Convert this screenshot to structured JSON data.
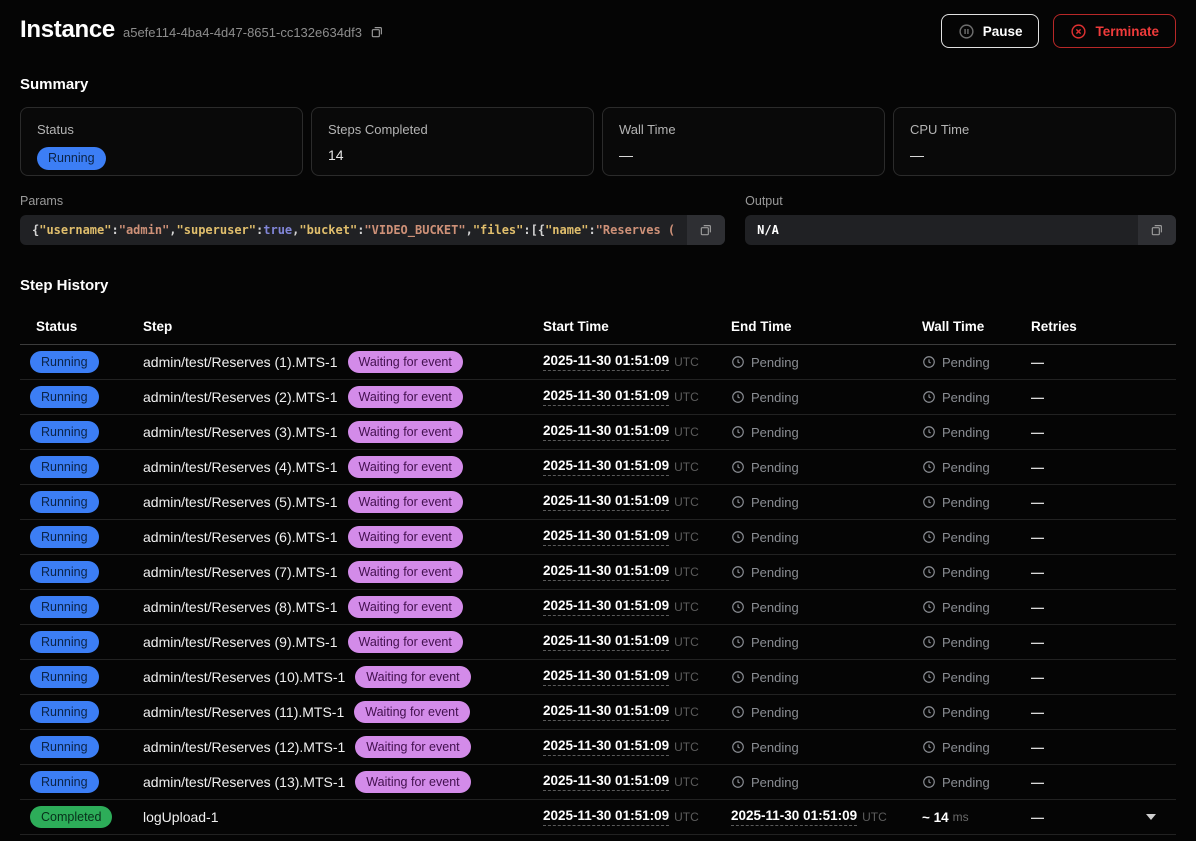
{
  "header": {
    "title": "Instance",
    "instance_id": "a5efe114-4ba4-4d47-8651-cc132e634df3",
    "pause_label": "Pause",
    "terminate_label": "Terminate"
  },
  "colors": {
    "status_running_bg": "#3c7ef5",
    "status_completed_bg": "#2dad59",
    "step_badge_bg": "#d38be9",
    "terminate_red": "#ef3b3b",
    "code_key": "#e0be6c",
    "code_string": "#ce9178",
    "code_bool": "#8186d8"
  },
  "summary": {
    "heading": "Summary",
    "cards": [
      {
        "label": "Status",
        "value": "Running",
        "kind": "badge"
      },
      {
        "label": "Steps Completed",
        "value": "14",
        "kind": "text"
      },
      {
        "label": "Wall Time",
        "value": "—",
        "kind": "text"
      },
      {
        "label": "CPU Time",
        "value": "—",
        "kind": "text"
      }
    ]
  },
  "params": {
    "label": "Params",
    "copy_icon": "copy-icon",
    "segments": [
      {
        "t": "{",
        "c": "punct"
      },
      {
        "t": "\"username\"",
        "c": "key"
      },
      {
        "t": ":",
        "c": "punct"
      },
      {
        "t": "\"admin\"",
        "c": "str"
      },
      {
        "t": ",",
        "c": "punct"
      },
      {
        "t": "\"superuser\"",
        "c": "key"
      },
      {
        "t": ":",
        "c": "punct"
      },
      {
        "t": "true",
        "c": "bool"
      },
      {
        "t": ",",
        "c": "punct"
      },
      {
        "t": "\"bucket\"",
        "c": "key"
      },
      {
        "t": ":",
        "c": "punct"
      },
      {
        "t": "\"VIDEO_BUCKET\"",
        "c": "str"
      },
      {
        "t": ",",
        "c": "punct"
      },
      {
        "t": "\"files\"",
        "c": "key"
      },
      {
        "t": ":[{",
        "c": "punct"
      },
      {
        "t": "\"name\"",
        "c": "key"
      },
      {
        "t": ":",
        "c": "punct"
      },
      {
        "t": "\"Reserves (",
        "c": "str"
      }
    ]
  },
  "output": {
    "label": "Output",
    "value": "N/A",
    "copy_icon": "copy-icon"
  },
  "step_history": {
    "heading": "Step History",
    "columns": [
      "Status",
      "Step",
      "Start Time",
      "End Time",
      "Wall Time",
      "Retries"
    ],
    "pending_label": "Pending",
    "rows": [
      {
        "status": "Running",
        "status_style": "blue",
        "step": "admin/test/Reserves (1).MTS-1",
        "step_badge": "Waiting for event",
        "start": {
          "time": "2025-11-30 01:51:09",
          "tz": "UTC"
        },
        "end": {
          "pending": "Pending"
        },
        "wall": {
          "pending": "Pending"
        },
        "retries": "—",
        "expandable": false
      },
      {
        "status": "Running",
        "status_style": "blue",
        "step": "admin/test/Reserves (2).MTS-1",
        "step_badge": "Waiting for event",
        "start": {
          "time": "2025-11-30 01:51:09",
          "tz": "UTC"
        },
        "end": {
          "pending": "Pending"
        },
        "wall": {
          "pending": "Pending"
        },
        "retries": "—",
        "expandable": false
      },
      {
        "status": "Running",
        "status_style": "blue",
        "step": "admin/test/Reserves (3).MTS-1",
        "step_badge": "Waiting for event",
        "start": {
          "time": "2025-11-30 01:51:09",
          "tz": "UTC"
        },
        "end": {
          "pending": "Pending"
        },
        "wall": {
          "pending": "Pending"
        },
        "retries": "—",
        "expandable": false
      },
      {
        "status": "Running",
        "status_style": "blue",
        "step": "admin/test/Reserves (4).MTS-1",
        "step_badge": "Waiting for event",
        "start": {
          "time": "2025-11-30 01:51:09",
          "tz": "UTC"
        },
        "end": {
          "pending": "Pending"
        },
        "wall": {
          "pending": "Pending"
        },
        "retries": "—",
        "expandable": false
      },
      {
        "status": "Running",
        "status_style": "blue",
        "step": "admin/test/Reserves (5).MTS-1",
        "step_badge": "Waiting for event",
        "start": {
          "time": "2025-11-30 01:51:09",
          "tz": "UTC"
        },
        "end": {
          "pending": "Pending"
        },
        "wall": {
          "pending": "Pending"
        },
        "retries": "—",
        "expandable": false
      },
      {
        "status": "Running",
        "status_style": "blue",
        "step": "admin/test/Reserves (6).MTS-1",
        "step_badge": "Waiting for event",
        "start": {
          "time": "2025-11-30 01:51:09",
          "tz": "UTC"
        },
        "end": {
          "pending": "Pending"
        },
        "wall": {
          "pending": "Pending"
        },
        "retries": "—",
        "expandable": false
      },
      {
        "status": "Running",
        "status_style": "blue",
        "step": "admin/test/Reserves (7).MTS-1",
        "step_badge": "Waiting for event",
        "start": {
          "time": "2025-11-30 01:51:09",
          "tz": "UTC"
        },
        "end": {
          "pending": "Pending"
        },
        "wall": {
          "pending": "Pending"
        },
        "retries": "—",
        "expandable": false
      },
      {
        "status": "Running",
        "status_style": "blue",
        "step": "admin/test/Reserves (8).MTS-1",
        "step_badge": "Waiting for event",
        "start": {
          "time": "2025-11-30 01:51:09",
          "tz": "UTC"
        },
        "end": {
          "pending": "Pending"
        },
        "wall": {
          "pending": "Pending"
        },
        "retries": "—",
        "expandable": false
      },
      {
        "status": "Running",
        "status_style": "blue",
        "step": "admin/test/Reserves (9).MTS-1",
        "step_badge": "Waiting for event",
        "start": {
          "time": "2025-11-30 01:51:09",
          "tz": "UTC"
        },
        "end": {
          "pending": "Pending"
        },
        "wall": {
          "pending": "Pending"
        },
        "retries": "—",
        "expandable": false
      },
      {
        "status": "Running",
        "status_style": "blue",
        "step": "admin/test/Reserves (10).MTS-1",
        "step_badge": "Waiting for event",
        "start": {
          "time": "2025-11-30 01:51:09",
          "tz": "UTC"
        },
        "end": {
          "pending": "Pending"
        },
        "wall": {
          "pending": "Pending"
        },
        "retries": "—",
        "expandable": false
      },
      {
        "status": "Running",
        "status_style": "blue",
        "step": "admin/test/Reserves (11).MTS-1",
        "step_badge": "Waiting for event",
        "start": {
          "time": "2025-11-30 01:51:09",
          "tz": "UTC"
        },
        "end": {
          "pending": "Pending"
        },
        "wall": {
          "pending": "Pending"
        },
        "retries": "—",
        "expandable": false
      },
      {
        "status": "Running",
        "status_style": "blue",
        "step": "admin/test/Reserves (12).MTS-1",
        "step_badge": "Waiting for event",
        "start": {
          "time": "2025-11-30 01:51:09",
          "tz": "UTC"
        },
        "end": {
          "pending": "Pending"
        },
        "wall": {
          "pending": "Pending"
        },
        "retries": "—",
        "expandable": false
      },
      {
        "status": "Running",
        "status_style": "blue",
        "step": "admin/test/Reserves (13).MTS-1",
        "step_badge": "Waiting for event",
        "start": {
          "time": "2025-11-30 01:51:09",
          "tz": "UTC"
        },
        "end": {
          "pending": "Pending"
        },
        "wall": {
          "pending": "Pending"
        },
        "retries": "—",
        "expandable": false
      },
      {
        "status": "Completed",
        "status_style": "green",
        "step": "logUpload-1",
        "step_badge": null,
        "start": {
          "time": "2025-11-30 01:51:09",
          "tz": "UTC"
        },
        "end": {
          "time": "2025-11-30 01:51:09",
          "tz": "UTC"
        },
        "wall": {
          "value": "~ 14",
          "unit": "ms"
        },
        "retries": "—",
        "expandable": true
      }
    ]
  }
}
